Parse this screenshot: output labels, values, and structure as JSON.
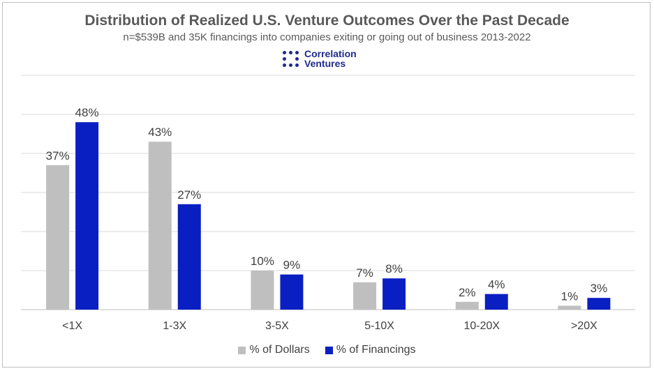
{
  "chart_data": {
    "type": "bar",
    "title": "Distribution of Realized U.S. Venture Outcomes Over the Past Decade",
    "subtitle": "n=$539B and 35K financings into companies exiting or going out of business 2013-2022",
    "categories": [
      "<1X",
      "1-3X",
      "3-5X",
      "5-10X",
      "10-20X",
      ">20X"
    ],
    "series": [
      {
        "name": "% of Dollars",
        "color": "#BFBFBF",
        "values": [
          37,
          43,
          10,
          7,
          2,
          1
        ],
        "labels": [
          "37%",
          "43%",
          "10%",
          "7%",
          "2%",
          "1%"
        ]
      },
      {
        "name": "% of Financings",
        "color": "#0A1FC2",
        "values": [
          48,
          27,
          9,
          8,
          4,
          3
        ],
        "labels": [
          "48%",
          "27%",
          "9%",
          "8%",
          "4%",
          "3%"
        ]
      }
    ],
    "ylim": [
      0,
      60
    ],
    "ytick_step": 10,
    "grid": true,
    "legend_position": "bottom",
    "xlabel": "",
    "ylabel": ""
  },
  "logo": {
    "line1": "Correlation",
    "line2": "Ventures"
  }
}
